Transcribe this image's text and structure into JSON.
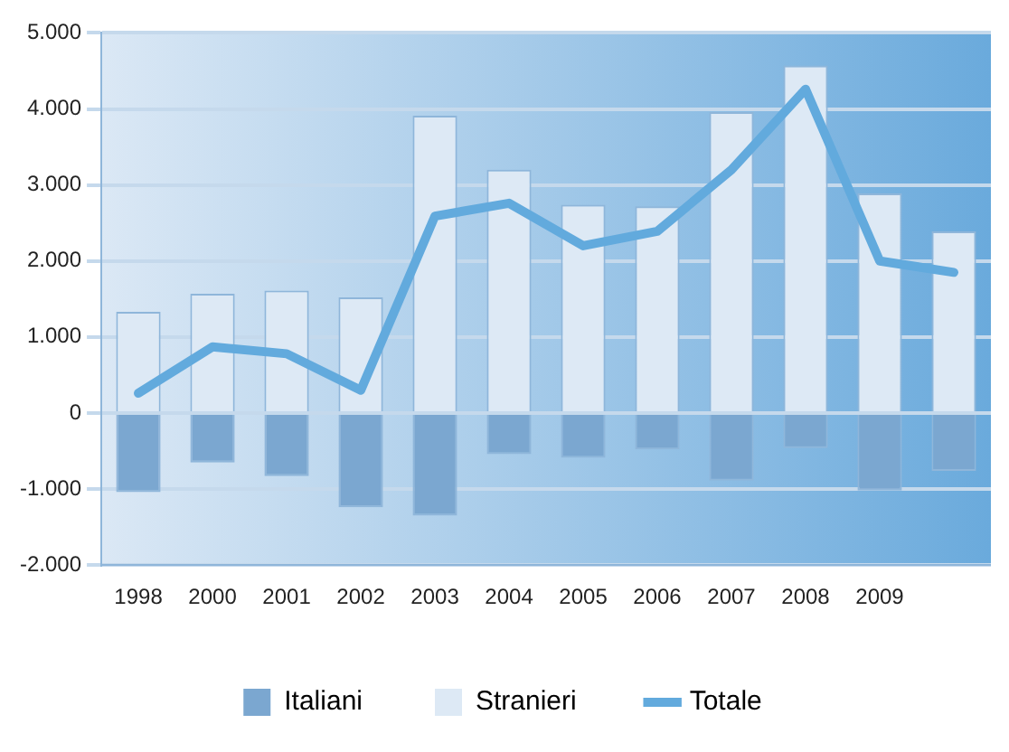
{
  "chart_data": {
    "type": "bar",
    "stacked": true,
    "categories": [
      "1998",
      "2000",
      "2001",
      "2002",
      "2003",
      "2004",
      "2005",
      "2006",
      "2007",
      "2008",
      "2009",
      null
    ],
    "series": [
      {
        "name": "Italiani",
        "color": "#7ba7d0",
        "values": [
          -1040,
          -650,
          -830,
          -1240,
          -1350,
          -540,
          -590,
          -480,
          -890,
          -460,
          -1020,
          -760
        ]
      },
      {
        "name": "Stranieri",
        "color": "#dde9f5",
        "values": [
          1330,
          1570,
          1610,
          1520,
          3910,
          3200,
          2740,
          2720,
          3960,
          4570,
          2890,
          2390
        ]
      },
      {
        "name": "Totale",
        "type": "line",
        "color": "#62aadd",
        "values": [
          260,
          870,
          780,
          300,
          2590,
          2760,
          2200,
          2390,
          3200,
          4260,
          2000,
          1850
        ]
      }
    ],
    "ylim": [
      -2000,
      5000
    ],
    "yticks": [
      {
        "value": -2000,
        "label": "-2.000"
      },
      {
        "value": -1000,
        "label": "-1.000"
      },
      {
        "value": 0,
        "label": "0"
      },
      {
        "value": 1000,
        "label": "1.000"
      },
      {
        "value": 2000,
        "label": "2.000"
      },
      {
        "value": 3000,
        "label": "3.000"
      },
      {
        "value": 4000,
        "label": "4.000"
      },
      {
        "value": 5000,
        "label": "5.000"
      }
    ],
    "grid": "y",
    "legend": "bottom",
    "marker": "none",
    "line_style": "solid"
  }
}
